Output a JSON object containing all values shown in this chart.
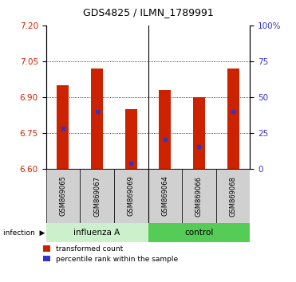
{
  "title": "GDS4825 / ILMN_1789991",
  "samples": [
    "GSM869065",
    "GSM869067",
    "GSM869069",
    "GSM869064",
    "GSM869066",
    "GSM869068"
  ],
  "bar_top": [
    6.95,
    7.02,
    6.85,
    6.93,
    6.9,
    7.02
  ],
  "bar_bottom": 6.6,
  "blue_dot": [
    6.77,
    6.84,
    6.625,
    6.725,
    6.695,
    6.84
  ],
  "ylim": [
    6.6,
    7.2
  ],
  "yticks_left": [
    6.6,
    6.75,
    6.9,
    7.05,
    7.2
  ],
  "yticks_right": [
    0,
    25,
    50,
    75,
    100
  ],
  "bar_color": "#cc2200",
  "dot_color": "#3333cc",
  "bar_width": 0.35,
  "grid_yticks": [
    6.75,
    6.9,
    7.05
  ],
  "left_tick_color": "#cc2200",
  "right_tick_color": "#3333cc",
  "legend_red": "transformed count",
  "legend_blue": "percentile rank within the sample",
  "influenza_color": "#ccf0cc",
  "control_color": "#55cc55",
  "sample_box_color": "#d0d0d0",
  "group_separator": 2.5
}
